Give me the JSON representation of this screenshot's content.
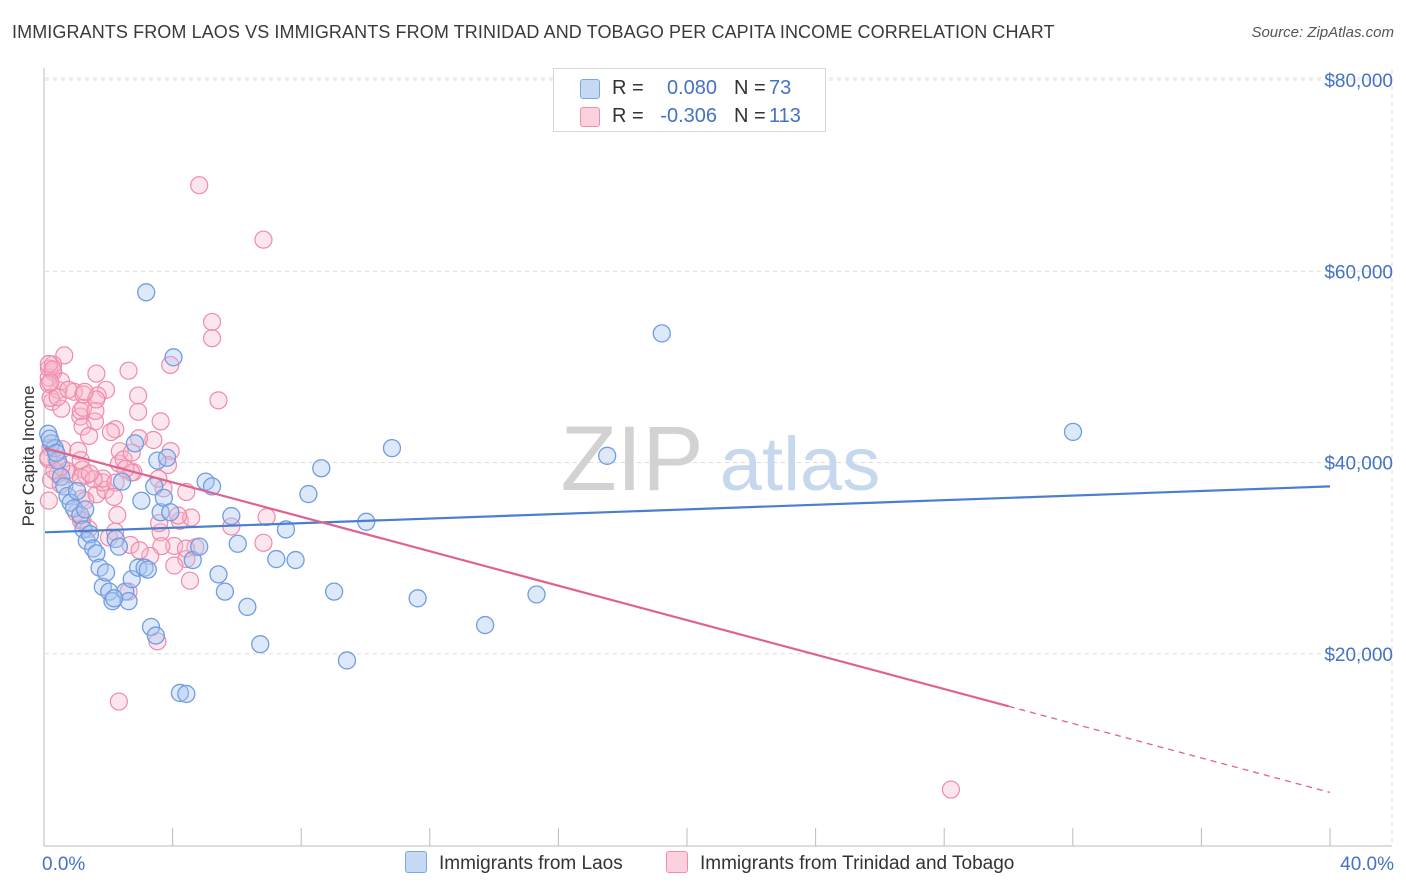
{
  "title": "IMMIGRANTS FROM LAOS VS IMMIGRANTS FROM TRINIDAD AND TOBAGO PER CAPITA INCOME CORRELATION CHART",
  "source": "Source: ZipAtlas.com",
  "watermark": {
    "zip": "ZIP",
    "atlas": "atlas"
  },
  "legend": {
    "r_label": "R =",
    "n_label": "N =",
    "rows": [
      {
        "r": "0.080",
        "n": "73",
        "color": "#7aa6e3"
      },
      {
        "r": "-0.306",
        "n": "113",
        "color": "#f08cac"
      }
    ]
  },
  "bottom_legend": [
    {
      "label": "Immigrants from Laos",
      "color": "#7aa6e3"
    },
    {
      "label": "Immigrants from Trinidad and Tobago",
      "color": "#f08cac"
    }
  ],
  "colors": {
    "blue": "#4a7fd0",
    "blue_fill": "#a9c6ef",
    "pink": "#e0628e",
    "pink_fill": "#f6b8cc",
    "grid": "#dcdcdc",
    "axis_text": "#4472c4"
  },
  "chart_data": {
    "type": "scatter",
    "title": "IMMIGRANTS FROM LAOS VS IMMIGRANTS FROM TRINIDAD AND TOBAGO PER CAPITA INCOME CORRELATION CHART",
    "xlabel": "",
    "ylabel": "Per Capita Income",
    "xlim": [
      0,
      40
    ],
    "ylim": [
      0,
      80000
    ],
    "x_tick_labels": [
      {
        "value": 0,
        "label": "0.0%"
      },
      {
        "value": 40,
        "label": "40.0%"
      }
    ],
    "y_tick_labels": [
      {
        "value": 20000,
        "label": "$20,000"
      },
      {
        "value": 40000,
        "label": "$40,000"
      },
      {
        "value": 60000,
        "label": "$60,000"
      },
      {
        "value": 80000,
        "label": "$80,000"
      }
    ],
    "series": [
      {
        "name": "Immigrants from Laos",
        "R": 0.08,
        "N": 73,
        "trend": {
          "x0": 0,
          "y0": 32700,
          "x1": 40,
          "y1": 37500,
          "dash_from": null
        },
        "points": [
          [
            0.1,
            43000
          ],
          [
            0.2,
            42000
          ],
          [
            0.3,
            41500
          ],
          [
            0.4,
            40200
          ],
          [
            0.5,
            38500
          ],
          [
            0.6,
            37500
          ],
          [
            0.7,
            36500
          ],
          [
            0.8,
            35800
          ],
          [
            0.9,
            35200
          ],
          [
            1.0,
            37000
          ],
          [
            1.1,
            34500
          ],
          [
            1.2,
            33000
          ],
          [
            1.3,
            31800
          ],
          [
            1.4,
            32500
          ],
          [
            1.5,
            31000
          ],
          [
            1.6,
            30500
          ],
          [
            1.7,
            29000
          ],
          [
            1.8,
            27000
          ],
          [
            1.9,
            28500
          ],
          [
            2.0,
            26500
          ],
          [
            2.1,
            25500
          ],
          [
            2.2,
            32000
          ],
          [
            2.3,
            31200
          ],
          [
            2.4,
            38000
          ],
          [
            2.5,
            26500
          ],
          [
            2.6,
            25500
          ],
          [
            2.7,
            27800
          ],
          [
            2.8,
            42000
          ],
          [
            2.9,
            29000
          ],
          [
            3.0,
            36000
          ],
          [
            3.1,
            29000
          ],
          [
            3.2,
            28800
          ],
          [
            3.3,
            22800
          ],
          [
            3.4,
            37500
          ],
          [
            3.5,
            40200
          ],
          [
            3.6,
            34800
          ],
          [
            3.7,
            36300
          ],
          [
            3.8,
            40500
          ],
          [
            3.9,
            34800
          ],
          [
            4.0,
            51000
          ],
          [
            4.2,
            15900
          ],
          [
            4.4,
            15800
          ],
          [
            4.6,
            29800
          ],
          [
            4.8,
            31200
          ],
          [
            5.0,
            38000
          ],
          [
            5.2,
            37500
          ],
          [
            5.4,
            28300
          ],
          [
            5.6,
            26500
          ],
          [
            5.8,
            34400
          ],
          [
            6.0,
            31500
          ],
          [
            6.3,
            24900
          ],
          [
            6.7,
            21000
          ],
          [
            7.2,
            29900
          ],
          [
            7.5,
            33000
          ],
          [
            7.8,
            29800
          ],
          [
            8.2,
            36700
          ],
          [
            8.6,
            39400
          ],
          [
            9.0,
            26500
          ],
          [
            9.4,
            19300
          ],
          [
            10.0,
            33800
          ],
          [
            10.8,
            41500
          ],
          [
            11.6,
            25800
          ],
          [
            13.7,
            23000
          ],
          [
            15.3,
            26200
          ],
          [
            17.5,
            40700
          ],
          [
            19.2,
            53500
          ],
          [
            32.0,
            43200
          ],
          [
            0.15,
            42500
          ],
          [
            0.35,
            41000
          ],
          [
            1.25,
            35100
          ],
          [
            2.15,
            25800
          ],
          [
            3.45,
            21900
          ],
          [
            3.15,
            57800
          ]
        ]
      },
      {
        "name": "Immigrants from Trinidad and Tobago",
        "R": -0.306,
        "N": 113,
        "trend": {
          "x0": 0,
          "y0": 41500,
          "x1": 40,
          "y1": 5500,
          "dash_from": 30
        }
      }
    ]
  }
}
